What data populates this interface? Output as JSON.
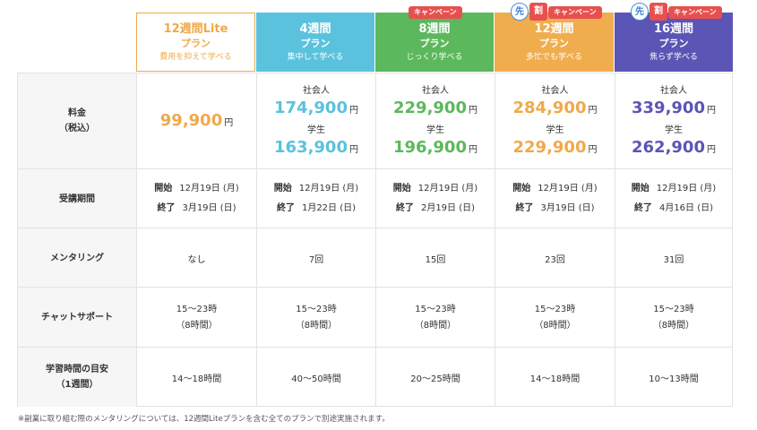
{
  "plans": [
    {
      "title": "12週間Lite",
      "plan": "プラン",
      "sub": "費用を抑えて学べる"
    },
    {
      "title": "4週間",
      "plan": "プラン",
      "sub": "集中して学べる"
    },
    {
      "title": "8週間",
      "plan": "プラン",
      "sub": "じっくり学べる",
      "badge": "キャンペーン"
    },
    {
      "title": "12週間",
      "plan": "プラン",
      "sub": "多忙でも学べる",
      "badge": "キャンペーン",
      "saki": "先",
      "wari": "割"
    },
    {
      "title": "16週間",
      "plan": "プラン",
      "sub": "焦らず学べる",
      "badge": "キャンペーン",
      "saki": "先",
      "wari": "割"
    }
  ],
  "labels": {
    "price": [
      "料金",
      "（税込）"
    ],
    "period": "受講期間",
    "mentoring": "メンタリング",
    "chat": "チャットサポート",
    "study": [
      "学習時間の目安",
      "（1週間）"
    ]
  },
  "price": {
    "yen": "円",
    "worker": "社会人",
    "student": "学生",
    "lite": "99,900",
    "plans": [
      {
        "worker": "174,900",
        "student": "163,900"
      },
      {
        "worker": "229,900",
        "student": "196,900"
      },
      {
        "worker": "284,900",
        "student": "229,900"
      },
      {
        "worker": "339,900",
        "student": "262,900"
      }
    ]
  },
  "period": {
    "start_label": "開始",
    "end_label": "終了",
    "plans": [
      {
        "start": "12月19日 (月)",
        "end": "3月19日 (日)"
      },
      {
        "start": "12月19日 (月)",
        "end": "1月22日 (日)"
      },
      {
        "start": "12月19日 (月)",
        "end": "2月19日 (日)"
      },
      {
        "start": "12月19日 (月)",
        "end": "3月19日 (日)"
      },
      {
        "start": "12月19日 (月)",
        "end": "4月16日 (日)"
      }
    ]
  },
  "mentoring": [
    "なし",
    "7回",
    "15回",
    "23回",
    "31回"
  ],
  "chat": {
    "hours": "15〜23時",
    "duration": "（8時間）"
  },
  "study": [
    "14〜18時間",
    "40〜50時間",
    "20〜25時間",
    "14〜18時間",
    "10〜13時間"
  ],
  "colors": {
    "lite": "#f0a94a",
    "w4": "#5bc2de",
    "w8": "#5cb85c",
    "w12": "#f0ad4e",
    "w16": "#5b55b5",
    "badge": "#e8504f"
  },
  "footnote": "※副業に取り組む際のメンタリングについては、12週間Liteプランを含む全てのプランで別途実施されます。"
}
